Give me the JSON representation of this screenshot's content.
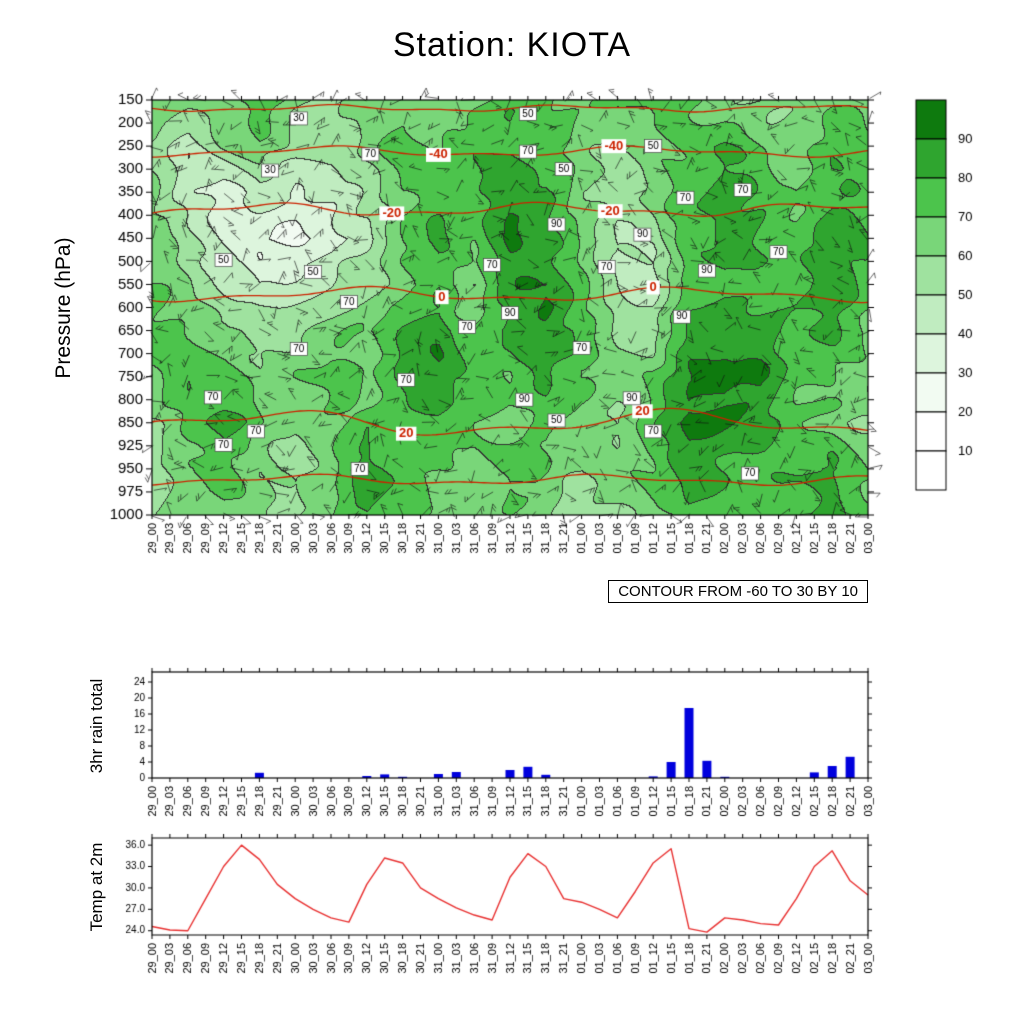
{
  "title": "Station: KIOTA",
  "contour_note": "CONTOUR FROM -60 TO 30 BY 10",
  "chart_data": [
    {
      "type": "heatmap",
      "name": "humidity-wind-cross-section",
      "ylabel": "Pressure (hPa)",
      "pressure_ticks": [
        150,
        200,
        250,
        300,
        350,
        400,
        450,
        500,
        550,
        600,
        650,
        700,
        750,
        800,
        850,
        925,
        950,
        975,
        1000
      ],
      "time_labels": [
        "29_00",
        "29_03",
        "29_06",
        "29_09",
        "29_12",
        "29_15",
        "29_18",
        "29_21",
        "30_00",
        "30_03",
        "30_06",
        "30_09",
        "30_12",
        "30_15",
        "30_18",
        "30_21",
        "31_00",
        "31_03",
        "31_06",
        "31_09",
        "31_12",
        "31_15",
        "31_18",
        "31_21",
        "01_00",
        "01_03",
        "01_06",
        "01_09",
        "01_12",
        "01_15",
        "01_18",
        "01_21",
        "02_00",
        "02_03",
        "02_06",
        "02_09",
        "02_12",
        "02_15",
        "02_18",
        "02_21",
        "03_00"
      ],
      "colorbar": {
        "labels": [
          90,
          80,
          70,
          60,
          50,
          40,
          30,
          20,
          10
        ],
        "colors_low_to_high": [
          "#ffffff",
          "#ffffff",
          "#f2fbf2",
          "#ddf5dd",
          "#c0ecc0",
          "#9fe29f",
          "#79d679",
          "#4cc44c",
          "#2fa52f",
          "#0e7a0e"
        ]
      },
      "grid_times": [
        "29_00",
        "29_06",
        "29_12",
        "29_18",
        "30_00",
        "30_06",
        "30_12",
        "30_18",
        "31_00",
        "31_06",
        "31_12",
        "31_18",
        "01_00",
        "01_06",
        "01_12",
        "01_18",
        "02_00",
        "02_06",
        "02_12",
        "02_18",
        "03_00"
      ],
      "grid_pressures": [
        150,
        250,
        350,
        450,
        550,
        650,
        750,
        850,
        950,
        1000
      ],
      "rh": [
        [
          65,
          60,
          70,
          75,
          65,
          60,
          70,
          65,
          60,
          70,
          75,
          70,
          65,
          70,
          75,
          70,
          65,
          60,
          65,
          70,
          65
        ],
        [
          55,
          45,
          60,
          70,
          55,
          50,
          65,
          75,
          70,
          75,
          80,
          75,
          65,
          60,
          70,
          75,
          80,
          70,
          60,
          75,
          70
        ],
        [
          60,
          40,
          35,
          45,
          40,
          45,
          55,
          70,
          75,
          80,
          85,
          80,
          60,
          55,
          65,
          75,
          88,
          82,
          70,
          80,
          75
        ],
        [
          65,
          55,
          40,
          30,
          30,
          35,
          50,
          70,
          80,
          70,
          90,
          85,
          65,
          50,
          55,
          80,
          85,
          80,
          75,
          85,
          80
        ],
        [
          70,
          60,
          50,
          40,
          45,
          50,
          60,
          65,
          75,
          60,
          85,
          90,
          70,
          50,
          45,
          75,
          80,
          75,
          80,
          85,
          75
        ],
        [
          75,
          70,
          65,
          55,
          60,
          65,
          70,
          80,
          85,
          70,
          80,
          90,
          75,
          60,
          55,
          85,
          90,
          85,
          80,
          80,
          70
        ],
        [
          70,
          80,
          75,
          65,
          70,
          75,
          65,
          85,
          90,
          75,
          70,
          85,
          70,
          65,
          70,
          90,
          95,
          90,
          75,
          70,
          65
        ],
        [
          60,
          75,
          85,
          70,
          60,
          65,
          75,
          70,
          80,
          70,
          65,
          75,
          65,
          60,
          75,
          95,
          90,
          85,
          70,
          65,
          60
        ],
        [
          55,
          65,
          75,
          60,
          55,
          70,
          85,
          80,
          70,
          65,
          75,
          70,
          60,
          65,
          70,
          85,
          80,
          75,
          80,
          85,
          70
        ],
        [
          60,
          70,
          70,
          65,
          60,
          65,
          80,
          75,
          65,
          60,
          70,
          65,
          55,
          60,
          65,
          80,
          75,
          70,
          75,
          80,
          75
        ]
      ],
      "temp_contour_color": "#cc2200",
      "temp_contours": [
        {
          "label": "",
          "pressure": 168,
          "label_x": []
        },
        {
          "label": "-40",
          "pressure": 262,
          "label_x": [
            0.4,
            0.645
          ]
        },
        {
          "label": "-20",
          "pressure": 388,
          "label_x": [
            0.335,
            0.64
          ]
        },
        {
          "label": "0",
          "pressure": 572,
          "label_x": [
            0.405,
            0.7
          ]
        },
        {
          "label": "20",
          "pressure": 852,
          "label_x": [
            0.355,
            0.685
          ]
        },
        {
          "label": "",
          "pressure": 962,
          "label_x": []
        }
      ],
      "inline_labels": [
        [
          0.165,
          303,
          "30"
        ],
        [
          0.205,
          190,
          "30"
        ],
        [
          0.1,
          497,
          "50"
        ],
        [
          0.225,
          523,
          "50"
        ],
        [
          0.525,
          180,
          "50"
        ],
        [
          0.575,
          300,
          "50"
        ],
        [
          0.7,
          250,
          "50"
        ],
        [
          0.565,
          845,
          "50"
        ],
        [
          0.085,
          795,
          "70"
        ],
        [
          0.1,
          922,
          "70"
        ],
        [
          0.145,
          878,
          "70"
        ],
        [
          0.205,
          690,
          "70"
        ],
        [
          0.275,
          588,
          "70"
        ],
        [
          0.29,
          950,
          "70"
        ],
        [
          0.305,
          268,
          "70"
        ],
        [
          0.355,
          757,
          "70"
        ],
        [
          0.44,
          642,
          "70"
        ],
        [
          0.475,
          508,
          "70"
        ],
        [
          0.525,
          262,
          "70"
        ],
        [
          0.6,
          688,
          "70"
        ],
        [
          0.635,
          512,
          "70"
        ],
        [
          0.745,
          362,
          "70"
        ],
        [
          0.825,
          345,
          "70"
        ],
        [
          0.7,
          878,
          "70"
        ],
        [
          0.835,
          955,
          "70"
        ],
        [
          0.875,
          480,
          "70"
        ],
        [
          0.565,
          420,
          "90"
        ],
        [
          0.5,
          612,
          "90"
        ],
        [
          0.685,
          442,
          "90"
        ],
        [
          0.74,
          620,
          "90"
        ],
        [
          0.67,
          797,
          "90"
        ],
        [
          0.52,
          800,
          "90"
        ],
        [
          0.775,
          520,
          "90"
        ]
      ],
      "wind_barbs": true
    },
    {
      "type": "bar",
      "title": "3hr rain total",
      "categories": [
        "29_00",
        "29_03",
        "29_06",
        "29_09",
        "29_12",
        "29_15",
        "29_18",
        "29_21",
        "30_00",
        "30_03",
        "30_06",
        "30_09",
        "30_12",
        "30_15",
        "30_18",
        "30_21",
        "31_00",
        "31_03",
        "31_06",
        "31_09",
        "31_12",
        "31_15",
        "31_18",
        "31_21",
        "01_00",
        "01_03",
        "01_06",
        "01_09",
        "01_12",
        "01_15",
        "01_18",
        "01_21",
        "02_00",
        "02_03",
        "02_06",
        "02_09",
        "02_12",
        "02_15",
        "02_18",
        "02_21",
        "03_00"
      ],
      "values": [
        0,
        0,
        0,
        0,
        0,
        0,
        1.3,
        0,
        0,
        0,
        0,
        0,
        0.5,
        0.9,
        0.3,
        0,
        1.0,
        1.5,
        0,
        0,
        2.0,
        2.8,
        0.8,
        0,
        0,
        0,
        0,
        0,
        0.4,
        4.0,
        17.5,
        4.3,
        0.3,
        0,
        0,
        0,
        0,
        1.4,
        3.0,
        5.3,
        0
      ],
      "yticks": [
        0,
        4,
        8,
        12,
        16,
        20,
        24
      ],
      "ylim": [
        0,
        26.5
      ],
      "bar_color": "#0000dd"
    },
    {
      "type": "line",
      "title": "Temp at 2m",
      "categories": [
        "29_00",
        "29_03",
        "29_06",
        "29_09",
        "29_12",
        "29_15",
        "29_18",
        "29_21",
        "30_00",
        "30_03",
        "30_06",
        "30_09",
        "30_12",
        "30_15",
        "30_18",
        "30_21",
        "31_00",
        "31_03",
        "31_06",
        "31_09",
        "31_12",
        "31_15",
        "31_18",
        "31_21",
        "01_00",
        "01_03",
        "01_06",
        "01_09",
        "01_12",
        "01_15",
        "01_18",
        "01_21",
        "02_00",
        "02_03",
        "02_06",
        "02_09",
        "02_12",
        "02_15",
        "02_18",
        "02_21",
        "03_00"
      ],
      "values": [
        24.6,
        24.1,
        24.0,
        28.5,
        33.0,
        36.0,
        34.0,
        30.5,
        28.5,
        27.0,
        25.8,
        25.2,
        30.5,
        34.2,
        33.5,
        30.0,
        28.5,
        27.2,
        26.2,
        25.5,
        31.5,
        34.8,
        33.0,
        28.5,
        28.0,
        27.0,
        25.8,
        29.5,
        33.5,
        35.5,
        24.3,
        23.8,
        25.8,
        25.5,
        25.0,
        24.8,
        28.5,
        33.0,
        35.2,
        31.0,
        29.0
      ],
      "yticks": [
        24,
        27,
        30,
        33,
        36
      ],
      "ytick_labels": [
        "24.0",
        "27.0",
        "30.0",
        "33.0",
        "36.0"
      ],
      "ylim": [
        23.4,
        37
      ],
      "line_color": "#e83030"
    }
  ]
}
